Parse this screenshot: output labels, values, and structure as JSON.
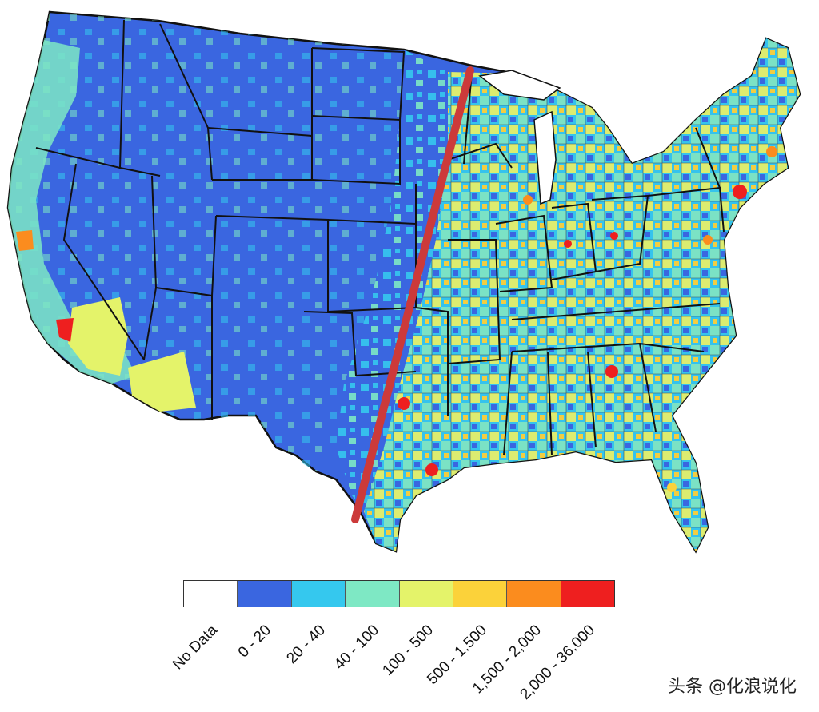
{
  "legend": {
    "categories": [
      {
        "label": "No Data",
        "color": "#ffffff"
      },
      {
        "label": "0 - 20",
        "color": "#3a66e0"
      },
      {
        "label": "20 - 40",
        "color": "#35c8ee"
      },
      {
        "label": "40 - 100",
        "color": "#7ee8c4"
      },
      {
        "label": "100 - 500",
        "color": "#e4f36a"
      },
      {
        "label": "500 - 1,500",
        "color": "#fbd23a"
      },
      {
        "label": "1,500 - 2,000",
        "color": "#fb8c1e"
      },
      {
        "label": "2,000 - 36,000",
        "color": "#ee1f1f"
      }
    ]
  },
  "divider_line_color": "#cc3a3a",
  "watermark": "头条 @化浪说化"
}
